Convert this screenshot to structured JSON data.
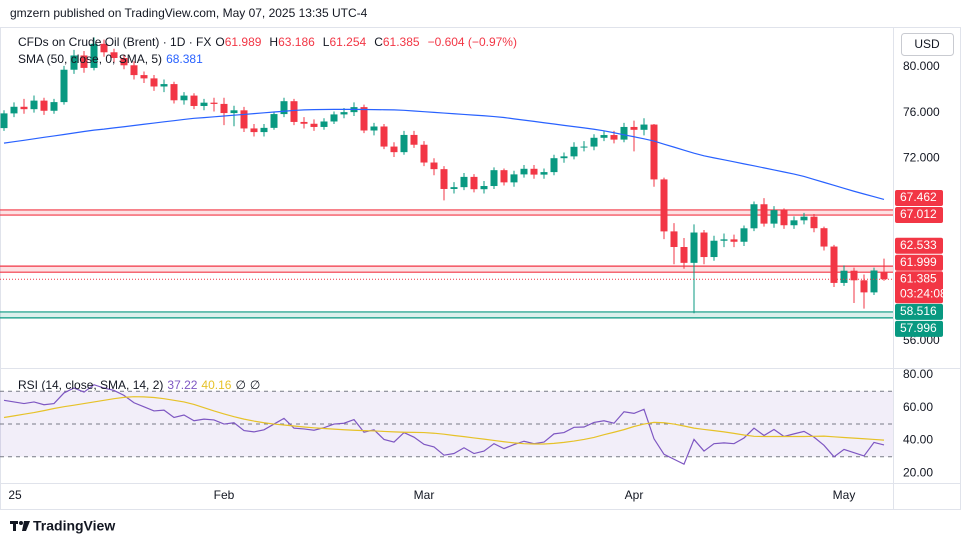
{
  "header": {
    "attribution": "gmzern published on TradingView.com, May 07, 2025 13:35 UTC-4",
    "footer": "TradingView"
  },
  "chart_data": [
    {
      "type": "candlestick",
      "title": "CFDs on Crude Oil (Brent) · 1D · FX",
      "ohlc_labels": [
        "O",
        "H",
        "L",
        "C"
      ],
      "change": "−0.604 (−0.97%)",
      "currency": "USD",
      "countdown": "03:24:08",
      "up_color": "#089981",
      "down_color": "#f23645",
      "xticks": [
        {
          "value": 0,
          "label": "25"
        },
        {
          "value": 22,
          "label": "Feb"
        },
        {
          "value": 42,
          "label": "Mar"
        },
        {
          "value": 63,
          "label": "Apr"
        },
        {
          "value": 84,
          "label": "May"
        }
      ],
      "ylim": [
        53.86,
        83.42
      ],
      "yticks": [
        {
          "value": 56,
          "label": "56.000"
        },
        {
          "value": 72,
          "label": "72.000"
        },
        {
          "value": 76,
          "label": "76.000"
        },
        {
          "value": 80,
          "label": "80.000"
        }
      ],
      "open": [
        74.64,
        75.93,
        76.51,
        76.3,
        77.05,
        76.16,
        76.92,
        79.76,
        81.01,
        79.92,
        82.03,
        81.29,
        80.79,
        80.15,
        79.29,
        79.0,
        78.29,
        78.5,
        77.08,
        77.49,
        76.58,
        76.87,
        76.76,
        75.96,
        76.2,
        74.61,
        74.29,
        74.66,
        75.87,
        77.0,
        75.18,
        75.02,
        74.74,
        75.22,
        75.84,
        76.04,
        76.48,
        74.43,
        74.78,
        73.02,
        72.53,
        74.04,
        73.18,
        71.62,
        71.04,
        69.3,
        69.46,
        70.36,
        69.28,
        69.56,
        70.95,
        69.88,
        70.58,
        71.07,
        70.56,
        70.78,
        72.0,
        72.16,
        73.0,
        73.02,
        73.79,
        74.03,
        73.63,
        74.74,
        74.49,
        74.95,
        70.14,
        65.58,
        64.21,
        62.82,
        65.48,
        63.33,
        64.76,
        64.88,
        64.67,
        65.85,
        67.96,
        66.26,
        67.44,
        66.12,
        66.55,
        66.87,
        65.86,
        64.25,
        61.06,
        62.13,
        61.29,
        60.23,
        61.989
      ],
      "high": [
        76.2,
        76.9,
        77.2,
        77.5,
        77.3,
        77.2,
        80.1,
        81.5,
        81.4,
        82.6,
        82.4,
        81.6,
        81.1,
        80.5,
        79.6,
        79.3,
        78.9,
        78.7,
        77.8,
        77.7,
        77.2,
        77.3,
        77.3,
        76.6,
        76.5,
        75.0,
        75.0,
        76.1,
        77.3,
        77.2,
        75.6,
        75.4,
        75.5,
        76.1,
        76.4,
        76.9,
        76.7,
        75.1,
        75.0,
        73.4,
        74.4,
        74.4,
        73.5,
        72.0,
        71.3,
        69.9,
        70.7,
        70.6,
        70.0,
        71.2,
        71.1,
        70.9,
        71.4,
        71.4,
        71.1,
        72.3,
        72.5,
        73.4,
        73.5,
        74.1,
        74.4,
        74.4,
        75.1,
        75.3,
        75.5,
        75.0,
        70.3,
        66.3,
        65.0,
        66.2,
        65.7,
        65.2,
        65.4,
        65.3,
        66.1,
        68.2,
        68.5,
        67.8,
        67.6,
        66.9,
        67.2,
        67.1,
        66.0,
        64.4,
        62.6,
        62.4,
        61.8,
        62.4,
        63.186
      ],
      "low": [
        74.4,
        75.6,
        75.9,
        76.0,
        75.8,
        75.9,
        76.7,
        79.4,
        79.5,
        79.7,
        80.9,
        80.4,
        79.8,
        78.9,
        78.6,
        77.9,
        77.8,
        76.8,
        76.7,
        76.3,
        76.2,
        76.1,
        74.9,
        74.8,
        74.3,
        73.9,
        73.9,
        74.5,
        75.6,
        74.9,
        74.6,
        74.4,
        74.5,
        75.0,
        75.5,
        75.7,
        74.2,
        74.0,
        72.8,
        72.1,
        72.3,
        72.9,
        71.3,
        70.5,
        68.3,
        68.9,
        69.2,
        69.0,
        68.9,
        69.3,
        69.6,
        69.5,
        70.3,
        70.2,
        70.2,
        70.5,
        71.6,
        71.9,
        72.6,
        72.7,
        73.5,
        73.3,
        73.4,
        72.6,
        74.0,
        69.5,
        64.9,
        62.7,
        62.3,
        58.4,
        62.7,
        63.0,
        64.2,
        64.2,
        64.3,
        65.6,
        66.0,
        65.9,
        65.8,
        65.8,
        66.2,
        65.5,
        63.9,
        60.7,
        60.8,
        59.3,
        58.8,
        60.0,
        61.254
      ],
      "close": [
        75.93,
        76.51,
        76.3,
        77.05,
        76.16,
        76.92,
        79.76,
        81.01,
        79.92,
        82.03,
        81.29,
        80.79,
        80.15,
        79.29,
        79.0,
        78.29,
        78.5,
        77.08,
        77.49,
        76.58,
        76.87,
        76.76,
        75.96,
        76.2,
        74.61,
        74.29,
        74.66,
        75.87,
        77.0,
        75.18,
        75.02,
        74.74,
        75.22,
        75.84,
        76.04,
        76.48,
        74.43,
        74.78,
        73.02,
        72.53,
        74.04,
        73.18,
        71.62,
        71.04,
        69.3,
        69.46,
        70.36,
        69.28,
        69.56,
        70.95,
        69.88,
        70.58,
        71.07,
        70.56,
        70.78,
        72.0,
        72.16,
        73.0,
        73.02,
        73.79,
        74.03,
        73.63,
        74.74,
        74.49,
        74.95,
        70.14,
        65.58,
        64.21,
        62.82,
        65.48,
        63.33,
        64.76,
        64.88,
        64.67,
        65.85,
        67.96,
        66.26,
        67.44,
        66.12,
        66.55,
        66.87,
        65.86,
        64.25,
        61.06,
        62.13,
        61.29,
        60.23,
        62.15,
        61.385
      ],
      "series": [
        {
          "name": "SMA (50, close, 0, SMA, 5)",
          "color": "#2962ff",
          "values": [
            73.32,
            73.45,
            73.57,
            73.7,
            73.83,
            73.95,
            74.08,
            74.21,
            74.34,
            74.46,
            74.55,
            74.66,
            74.76,
            74.87,
            74.98,
            75.08,
            75.19,
            75.29,
            75.4,
            75.5,
            75.56,
            75.63,
            75.7,
            75.77,
            75.84,
            75.91,
            75.98,
            76.05,
            76.12,
            76.19,
            76.24,
            76.26,
            76.27,
            76.28,
            76.28,
            76.28,
            76.27,
            76.26,
            76.25,
            76.24,
            76.2,
            76.14,
            76.08,
            76.02,
            75.96,
            75.9,
            75.84,
            75.78,
            75.72,
            75.65,
            75.57,
            75.45,
            75.34,
            75.23,
            75.11,
            75.0,
            74.88,
            74.77,
            74.66,
            74.54,
            74.4,
            74.23,
            74.05,
            73.88,
            73.7,
            73.5,
            73.23,
            72.97,
            72.7,
            72.44,
            72.21,
            72.03,
            71.86,
            71.68,
            71.5,
            71.33,
            71.15,
            70.97,
            70.79,
            70.61,
            70.4,
            70.14,
            69.88,
            69.62,
            69.36,
            69.1,
            68.86,
            68.62,
            68.381
          ]
        }
      ],
      "zones": [
        {
          "top": 67.462,
          "bottom": 67.012,
          "color": "#f23645"
        },
        {
          "top": 62.533,
          "bottom": 61.999,
          "color": "#f23645"
        },
        {
          "top": 58.516,
          "bottom": 57.996,
          "color": "#089981"
        }
      ]
    },
    {
      "type": "line",
      "ylim": [
        14,
        83
      ],
      "yticks": [
        {
          "value": 20,
          "label": "20.00"
        },
        {
          "value": 40,
          "label": "40.00"
        },
        {
          "value": 60,
          "label": "60.00"
        },
        {
          "value": 80,
          "label": "80.00"
        }
      ],
      "levels": [
        70,
        50,
        30
      ],
      "band_color": "#7e57c2",
      "na_labels": [
        "∅",
        "∅"
      ],
      "series": [
        {
          "name": "RSI (14, close, SMA, 14, 2)",
          "color": "#7e57c2",
          "values": [
            64.5,
            63.5,
            62.5,
            63.5,
            61.8,
            62.5,
            69.0,
            72.0,
            69.5,
            74.0,
            72.0,
            70.5,
            67.5,
            63.0,
            60.5,
            58.0,
            58.5,
            54.0,
            55.5,
            52.0,
            53.0,
            52.5,
            50.0,
            50.8,
            46.0,
            45.2,
            46.5,
            50.0,
            53.5,
            47.5,
            47.0,
            46.2,
            47.8,
            50.0,
            50.5,
            52.7,
            45.0,
            46.5,
            40.6,
            39.0,
            44.8,
            42.0,
            37.6,
            36.0,
            31.0,
            32.0,
            35.5,
            32.0,
            33.5,
            38.0,
            35.0,
            37.5,
            39.5,
            38.0,
            39.0,
            44.0,
            44.8,
            48.0,
            48.2,
            51.0,
            52.0,
            50.5,
            57.5,
            56.5,
            59.0,
            41.0,
            31.5,
            28.5,
            25.5,
            40.6,
            33.5,
            38.0,
            38.5,
            38.0,
            41.5,
            47.5,
            43.0,
            46.7,
            42.4,
            44.0,
            45.5,
            42.0,
            37.0,
            30.0,
            34.5,
            32.5,
            30.5,
            38.8,
            37.22
          ]
        },
        {
          "color": "#e6c229",
          "values": [
            54.0,
            55.0,
            56.0,
            57.0,
            58.2,
            59.5,
            60.6,
            61.5,
            62.5,
            63.5,
            64.5,
            65.5,
            66.3,
            66.7,
            66.6,
            66.2,
            65.5,
            64.5,
            63.5,
            62.0,
            60.0,
            58.0,
            56.2,
            54.5,
            53.0,
            51.8,
            50.8,
            50.0,
            49.4,
            48.8,
            48.2,
            47.7,
            47.3,
            46.9,
            46.5,
            46.2,
            46.0,
            45.8,
            45.5,
            45.2,
            45.0,
            44.9,
            44.8,
            44.4,
            43.8,
            43.0,
            42.3,
            41.5,
            40.8,
            40.0,
            39.2,
            38.5,
            38.0,
            37.8,
            37.8,
            38.2,
            38.8,
            39.6,
            40.6,
            41.8,
            43.5,
            45.0,
            46.6,
            48.5,
            50.0,
            51.0,
            50.8,
            50.0,
            48.8,
            47.5,
            46.7,
            46.0,
            45.2,
            44.3,
            43.3,
            42.5,
            42.4,
            42.4,
            42.4,
            42.4,
            42.4,
            42.5,
            42.6,
            42.2,
            41.8,
            41.4,
            41.0,
            40.6,
            40.16
          ]
        }
      ]
    }
  ]
}
